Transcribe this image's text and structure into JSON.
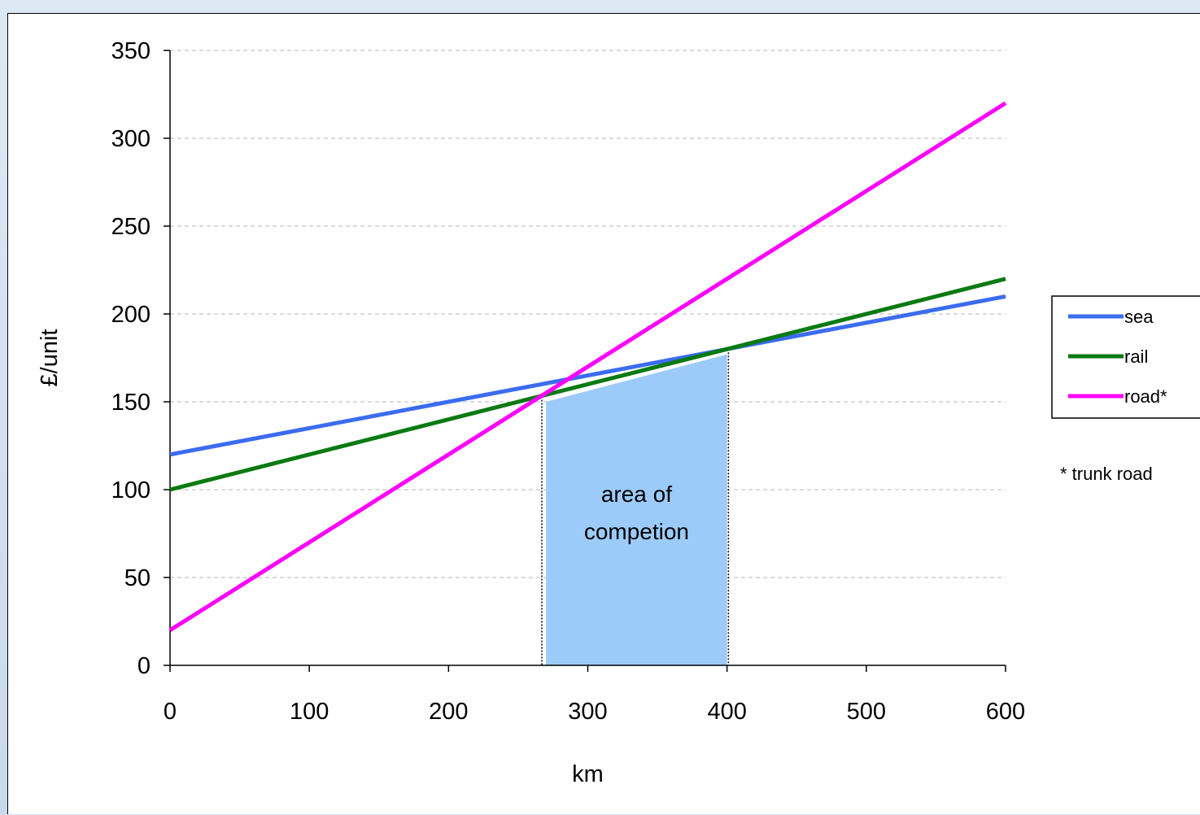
{
  "chart_data": {
    "type": "line",
    "title": "",
    "xlabel": "km",
    "ylabel": "£/unit",
    "xlim": [
      0,
      600
    ],
    "ylim": [
      0,
      350
    ],
    "xticks": [
      0,
      100,
      200,
      300,
      400,
      500,
      600
    ],
    "yticks": [
      0,
      50,
      100,
      150,
      200,
      250,
      300,
      350
    ],
    "grid": "horizontal-dashed",
    "legend_position": "right",
    "series": [
      {
        "name": "sea",
        "color": "#3b6cf0",
        "x": [
          0,
          600
        ],
        "y": [
          120,
          210
        ]
      },
      {
        "name": "rail",
        "color": "#0a7a12",
        "x": [
          0,
          600
        ],
        "y": [
          100,
          220
        ]
      },
      {
        "name": "road*",
        "color": "#ff00ff",
        "x": [
          0,
          600
        ],
        "y": [
          20,
          320
        ]
      }
    ],
    "shaded_region": {
      "color": "#9ccbfa",
      "x": [
        270,
        400
      ],
      "y_top": [
        150,
        177
      ],
      "label_lines": [
        "area of",
        "competion"
      ]
    },
    "reference_lines_x": [
      267,
      401
    ],
    "footnote": "* trunk road"
  }
}
